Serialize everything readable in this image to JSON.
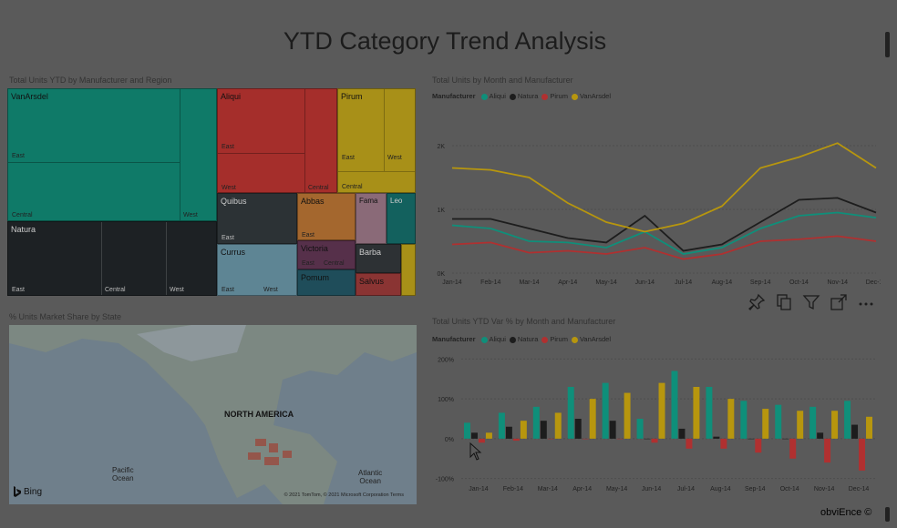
{
  "report": {
    "title": "YTD Category Trend Analysis",
    "footer": "obviEnce ©"
  },
  "treemap": {
    "title": "Total Units YTD by Manufacturer and Region",
    "blocks": [
      {
        "name": "VanArsdel",
        "color": "#0f7a68",
        "subs": [
          "East",
          "Central",
          "West"
        ]
      },
      {
        "name": "Natura",
        "color": "#1d2124",
        "subs": [
          "East",
          "Central",
          "West"
        ]
      },
      {
        "name": "Aliqui",
        "color": "#a52e2b",
        "subs": [
          "East",
          "West",
          "Central"
        ]
      },
      {
        "name": "Pirum",
        "color": "#a89018",
        "subs": [
          "East",
          "West",
          "Central"
        ]
      },
      {
        "name": "Quibus",
        "color": "#2c3235",
        "subs": [
          "East"
        ]
      },
      {
        "name": "Abbas",
        "color": "#a4672e",
        "subs": [
          "East"
        ]
      },
      {
        "name": "Fama",
        "color": "#8a6a78",
        "subs": []
      },
      {
        "name": "Leo",
        "color": "#13615e",
        "subs": []
      },
      {
        "name": "Currus",
        "color": "#5e8594",
        "subs": [
          "East",
          "West"
        ]
      },
      {
        "name": "Victoria",
        "color": "#56304a",
        "subs": [
          "East",
          "Central"
        ]
      },
      {
        "name": "Barba",
        "color": "#2d3134",
        "subs": []
      },
      {
        "name": "Pomum",
        "color": "#1f4d5a",
        "subs": []
      },
      {
        "name": "Salvus",
        "color": "#8a3433",
        "subs": []
      }
    ]
  },
  "map": {
    "title": "% Units Market Share by State",
    "labels": {
      "na": "NORTH AMERICA",
      "pacific": "Pacific\nOcean",
      "atlantic": "Atlantic\nOcean"
    },
    "brand": "Bing",
    "copyright": "© 2021 TomTom, © 2021 Microsoft Corporation Terms"
  },
  "visual_actions": [
    {
      "name": "pin-icon"
    },
    {
      "name": "copy-icon"
    },
    {
      "name": "filter-icon"
    },
    {
      "name": "focus-mode-icon"
    },
    {
      "name": "more-options-icon"
    }
  ],
  "chart_data": [
    {
      "type": "line",
      "title": "Total Units by Month and Manufacturer",
      "legend_title": "Manufacturer",
      "categories": [
        "Jan-14",
        "Feb-14",
        "Mar-14",
        "Apr-14",
        "May-14",
        "Jun-14",
        "Jul-14",
        "Aug-14",
        "Sep-14",
        "Oct-14",
        "Nov-14",
        "Dec-14"
      ],
      "y_ticks": [
        "0K",
        "1K",
        "2K"
      ],
      "ylim": [
        0,
        2500
      ],
      "series": [
        {
          "name": "Aliqui",
          "color": "#0f8f7a",
          "values": [
            750,
            700,
            500,
            480,
            400,
            650,
            300,
            400,
            700,
            900,
            950,
            870
          ]
        },
        {
          "name": "Natura",
          "color": "#1d1d1d",
          "values": [
            850,
            850,
            700,
            550,
            480,
            900,
            350,
            450,
            800,
            1150,
            1180,
            950
          ]
        },
        {
          "name": "Pirum",
          "color": "#b03030",
          "values": [
            450,
            480,
            320,
            350,
            300,
            400,
            220,
            300,
            500,
            530,
            580,
            500
          ]
        },
        {
          "name": "VanArsdel",
          "color": "#b7960e",
          "values": [
            1650,
            1620,
            1500,
            1100,
            800,
            650,
            780,
            1050,
            1650,
            1820,
            2040,
            1650
          ]
        }
      ]
    },
    {
      "type": "bar",
      "title": "Total Units YTD Var % by Month and Manufacturer",
      "legend_title": "Manufacturer",
      "categories": [
        "Jan-14",
        "Feb-14",
        "Mar-14",
        "Apr-14",
        "May-14",
        "Jun-14",
        "Jul-14",
        "Aug-14",
        "Sep-14",
        "Oct-14",
        "Nov-14",
        "Dec-14"
      ],
      "y_ticks": [
        "200%",
        "100%",
        "0%",
        "-100%"
      ],
      "ylim": [
        -110,
        210
      ],
      "series": [
        {
          "name": "Aliqui",
          "color": "#0f8f7a",
          "values": [
            40,
            65,
            80,
            130,
            140,
            50,
            170,
            130,
            95,
            85,
            80,
            95
          ]
        },
        {
          "name": "Natura",
          "color": "#1d1d1d",
          "values": [
            15,
            30,
            45,
            50,
            45,
            0,
            25,
            5,
            0,
            0,
            15,
            35
          ]
        },
        {
          "name": "Pirum",
          "color": "#b03030",
          "values": [
            -10,
            -5,
            0,
            0,
            0,
            -10,
            -25,
            -25,
            -35,
            -50,
            -60,
            -80
          ]
        },
        {
          "name": "VanArsdel",
          "color": "#b7960e",
          "values": [
            15,
            45,
            65,
            100,
            115,
            140,
            130,
            100,
            75,
            70,
            70,
            55
          ]
        }
      ]
    }
  ]
}
